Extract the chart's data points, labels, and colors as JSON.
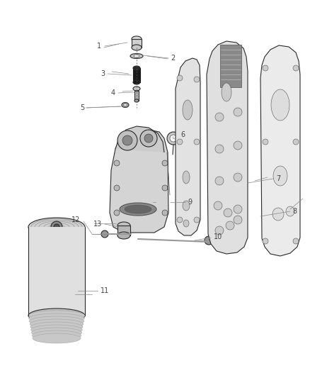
{
  "background_color": "#ffffff",
  "line_color": "#2a2a2a",
  "label_color": "#888888",
  "label_fontsize": 7.0,
  "fig_width": 4.38,
  "fig_height": 5.33,
  "dpi": 100
}
